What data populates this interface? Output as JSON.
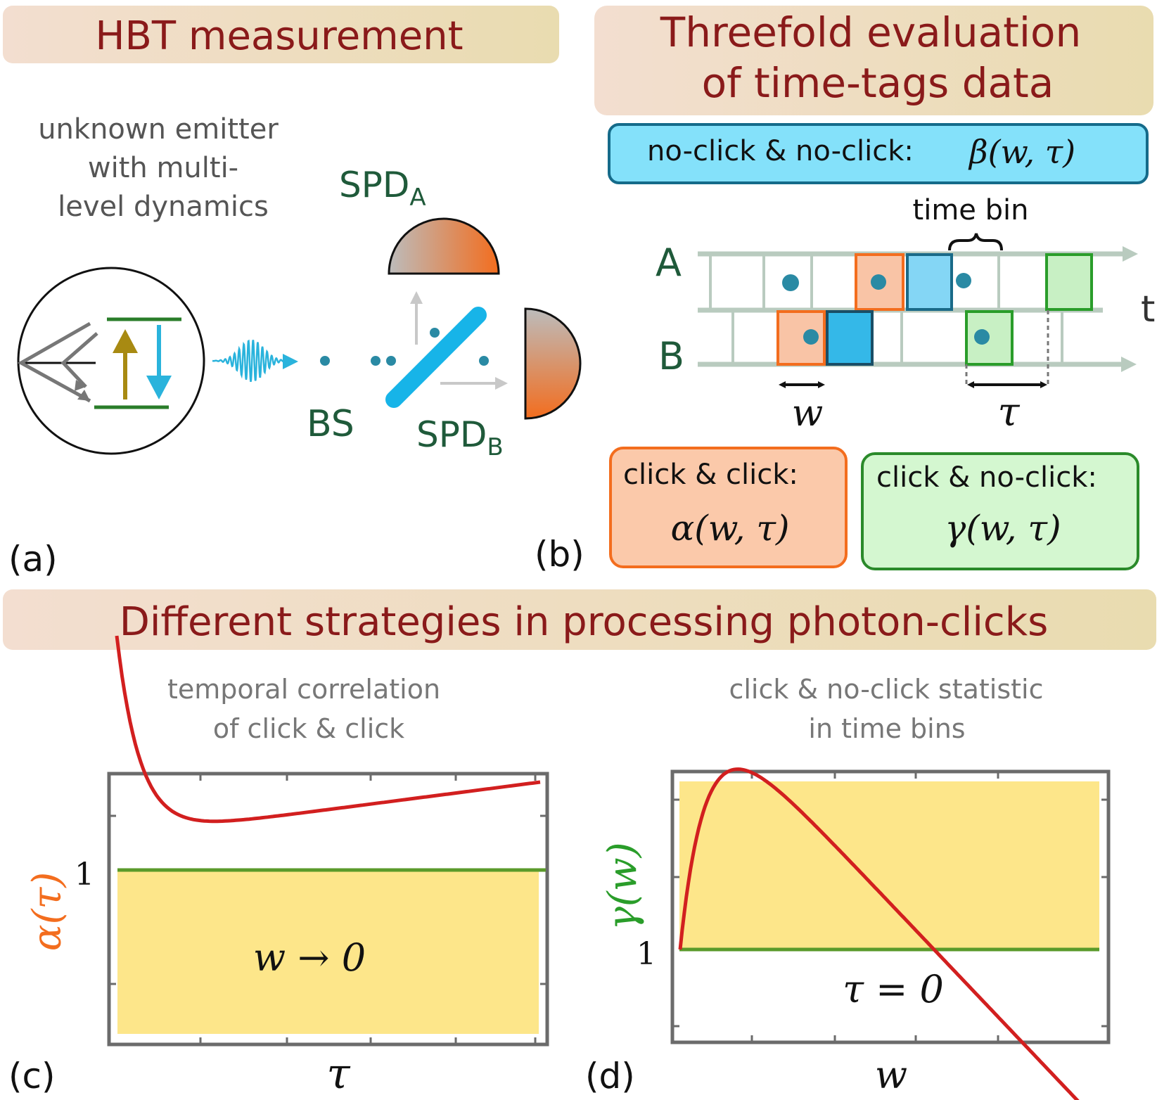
{
  "colors": {
    "title_text": "#8a1a1a",
    "banner_left": "#f3ded0",
    "banner_right": "#e9dcb0",
    "dark_green": "#1f5a3a",
    "cyan": "#17b4e8",
    "orange": "#f36d1e",
    "green": "#2a9d2a",
    "red_curve": "#d21f1f",
    "yellow_fill": "#fde68a",
    "axis_grey": "#6b6b6b",
    "light_grid": "#b9cbbf"
  },
  "panel_a": {
    "banner": "HBT measurement",
    "emitter_line1": "unknown emitter",
    "emitter_line2": "with multi-",
    "emitter_line3": "level dynamics",
    "spd_a": "SPD",
    "spd_a_sub": "A",
    "spd_b": "SPD",
    "spd_b_sub": "B",
    "bs": "BS",
    "label": "(a)"
  },
  "panel_b": {
    "banner_line1": "Threefold evaluation",
    "banner_line2": "of time-tags data",
    "beta_text": "no-click & no-click:",
    "beta_math": "β(w, τ)",
    "time_bin": "time bin",
    "row_a": "A",
    "row_b": "B",
    "t_axis": "t",
    "w_label": "w",
    "tau_label": "τ",
    "alpha_text": "click & click:",
    "alpha_math": "α(w, τ)",
    "gamma_text": "click & no-click:",
    "gamma_math": "γ(w, τ)",
    "label": "(b)"
  },
  "banner_bottom": "Different strategies in processing photon-clicks",
  "panel_c": {
    "title_line1": "temporal correlation",
    "title_line2": "of click & click",
    "ylabel": "α(τ)",
    "ytick": "1",
    "xlabel": "τ",
    "annotation": "w → 0",
    "label": "(c)"
  },
  "panel_d": {
    "title_line1": "click & no-click statistic",
    "title_line2": "in time bins",
    "ylabel": "γ(w)",
    "ytick": "1",
    "xlabel": "w",
    "annotation": "τ = 0",
    "label": "(d)"
  }
}
